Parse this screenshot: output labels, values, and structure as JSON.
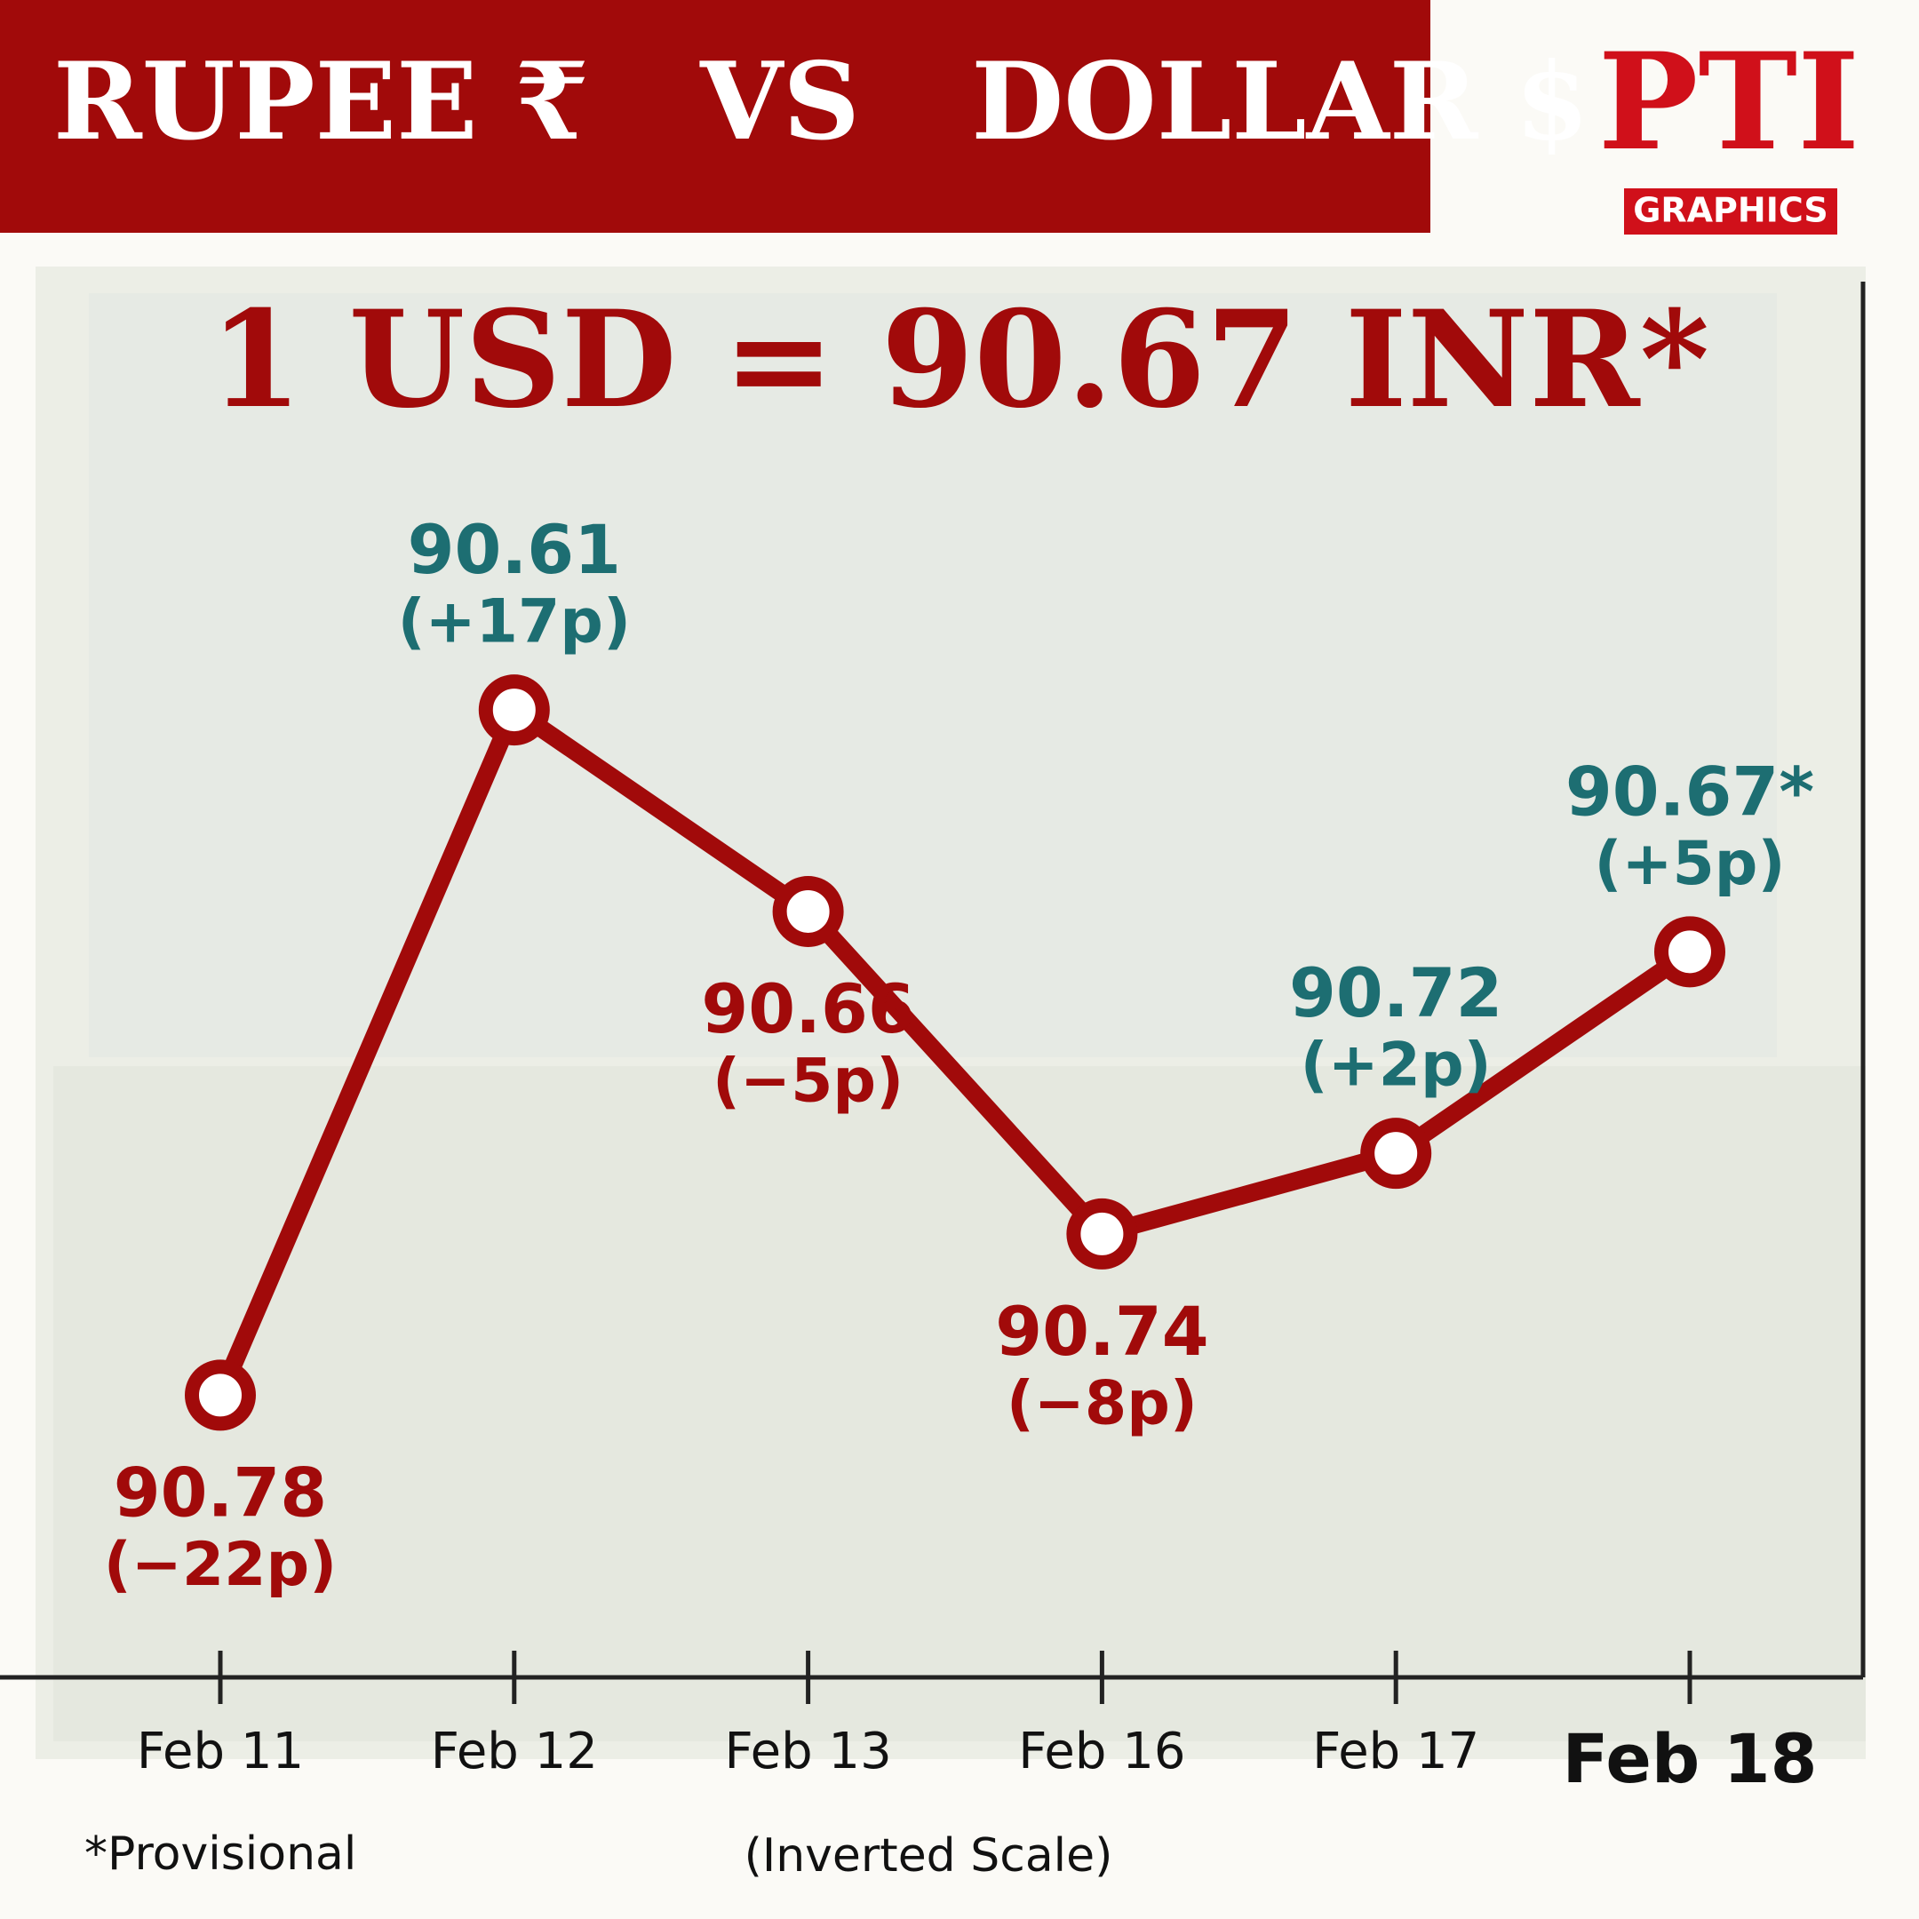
{
  "chart_data": {
    "type": "line",
    "title": "RUPEE ₹   VS   DOLLAR $",
    "subtitle": "1 USD = 90.67 INR*",
    "logo": "PTI",
    "logo_caption": "GRAPHICS",
    "categories": [
      "Feb 11",
      "Feb 12",
      "Feb 13",
      "Feb 16",
      "Feb 17",
      "Feb 18"
    ],
    "values": [
      90.78,
      90.61,
      90.66,
      90.74,
      90.72,
      90.67
    ],
    "value_labels": [
      "90.78",
      "90.61",
      "90.66",
      "90.74",
      "90.72",
      "90.67*"
    ],
    "changes": [
      -22,
      17,
      -5,
      -8,
      2,
      5
    ],
    "change_labels": [
      "(−22p)",
      "(+17p)",
      "(−5p)",
      "(−8p)",
      "(+2p)",
      "(+5p)"
    ],
    "color": "#a10a0a",
    "up_color": "#1d6e72",
    "down_color": "#a10a0a",
    "ylim": [
      90.5,
      90.85
    ],
    "inverted_scale": true,
    "notes": [
      "*Provisional",
      "(Inverted Scale)"
    ]
  }
}
